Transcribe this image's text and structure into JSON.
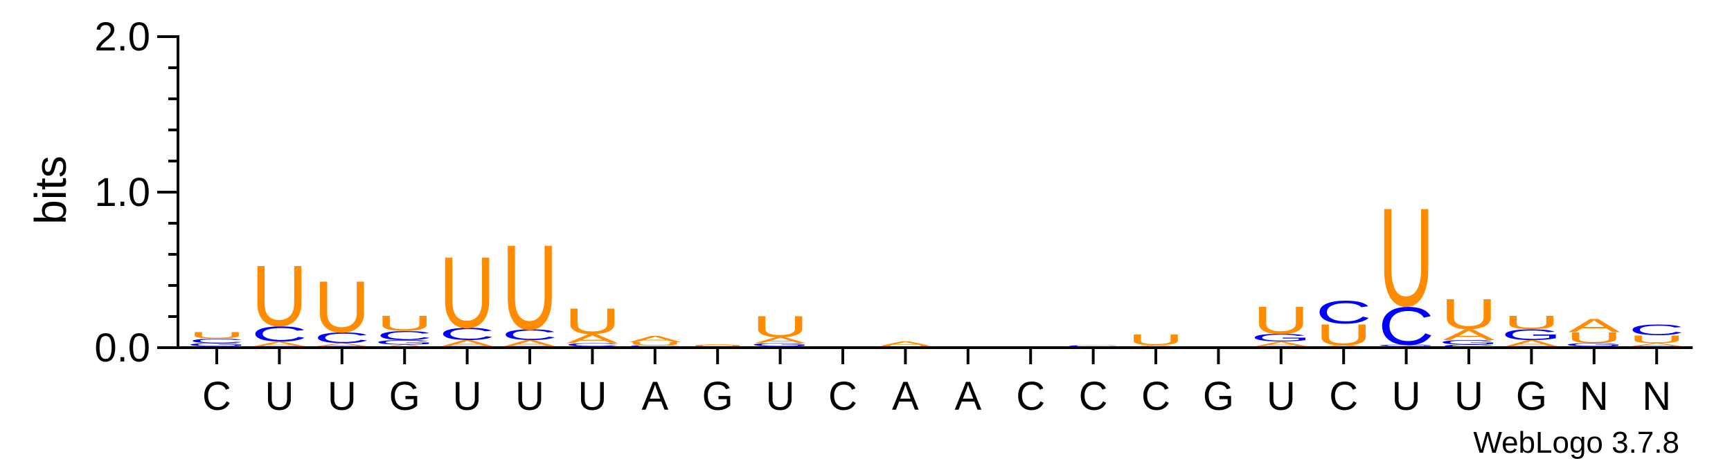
{
  "chart_data": {
    "type": "sequence-logo",
    "ylabel": "bits",
    "ylim": [
      0,
      2.0
    ],
    "yticks": [
      {
        "value": 0.0,
        "label": "0.0"
      },
      {
        "value": 1.0,
        "label": "1.0"
      },
      {
        "value": 2.0,
        "label": "2.0"
      }
    ],
    "x_labels": [
      "C",
      "U",
      "U",
      "G",
      "U",
      "U",
      "U",
      "A",
      "G",
      "U",
      "C",
      "A",
      "A",
      "C",
      "C",
      "C",
      "G",
      "U",
      "C",
      "U",
      "U",
      "G",
      "N",
      "N"
    ],
    "credit": "WebLogo 3.7.8",
    "colors": {
      "U": "#ff8c00",
      "A": "#ff8c00",
      "C": "#0000ff",
      "G": "#0000ff"
    },
    "columns": [
      {
        "label": "C",
        "stack": [
          {
            "letter": "A",
            "bits": 0.01
          },
          {
            "letter": "G",
            "bits": 0.02
          },
          {
            "letter": "C",
            "bits": 0.03
          },
          {
            "letter": "U",
            "bits": 0.04
          }
        ]
      },
      {
        "label": "U",
        "stack": [
          {
            "letter": "G",
            "bits": 0.01
          },
          {
            "letter": "A",
            "bits": 0.03
          },
          {
            "letter": "C",
            "bits": 0.1
          },
          {
            "letter": "U",
            "bits": 0.4
          }
        ]
      },
      {
        "label": "U",
        "stack": [
          {
            "letter": "G",
            "bits": 0.01
          },
          {
            "letter": "A",
            "bits": 0.02
          },
          {
            "letter": "C",
            "bits": 0.07
          },
          {
            "letter": "U",
            "bits": 0.34
          }
        ]
      },
      {
        "label": "G",
        "stack": [
          {
            "letter": "A",
            "bits": 0.02
          },
          {
            "letter": "G",
            "bits": 0.03
          },
          {
            "letter": "C",
            "bits": 0.06
          },
          {
            "letter": "U",
            "bits": 0.1
          }
        ]
      },
      {
        "label": "U",
        "stack": [
          {
            "letter": "G",
            "bits": 0.01
          },
          {
            "letter": "A",
            "bits": 0.04
          },
          {
            "letter": "C",
            "bits": 0.08
          },
          {
            "letter": "U",
            "bits": 0.47
          }
        ]
      },
      {
        "label": "U",
        "stack": [
          {
            "letter": "G",
            "bits": 0.01
          },
          {
            "letter": "A",
            "bits": 0.04
          },
          {
            "letter": "C",
            "bits": 0.07
          },
          {
            "letter": "U",
            "bits": 0.56
          }
        ]
      },
      {
        "label": "U",
        "stack": [
          {
            "letter": "G",
            "bits": 0.01
          },
          {
            "letter": "C",
            "bits": 0.02
          },
          {
            "letter": "A",
            "bits": 0.06
          },
          {
            "letter": "U",
            "bits": 0.17
          }
        ]
      },
      {
        "label": "A",
        "stack": [
          {
            "letter": "G",
            "bits": 0.005
          },
          {
            "letter": "C",
            "bits": 0.01
          },
          {
            "letter": "U",
            "bits": 0.02
          },
          {
            "letter": "A",
            "bits": 0.04
          }
        ]
      },
      {
        "label": "G",
        "stack": [
          {
            "letter": "G",
            "bits": 0.005
          },
          {
            "letter": "C",
            "bits": 0.005
          },
          {
            "letter": "U",
            "bits": 0.005
          },
          {
            "letter": "A",
            "bits": 0.005
          }
        ]
      },
      {
        "label": "U",
        "stack": [
          {
            "letter": "C",
            "bits": 0.01
          },
          {
            "letter": "G",
            "bits": 0.02
          },
          {
            "letter": "A",
            "bits": 0.04
          },
          {
            "letter": "U",
            "bits": 0.14
          }
        ]
      },
      {
        "label": "C",
        "stack": [
          {
            "letter": "C",
            "bits": 0.002
          },
          {
            "letter": "G",
            "bits": 0.002
          },
          {
            "letter": "U",
            "bits": 0.002
          },
          {
            "letter": "A",
            "bits": 0.002
          }
        ]
      },
      {
        "label": "A",
        "stack": [
          {
            "letter": "G",
            "bits": 0.003
          },
          {
            "letter": "C",
            "bits": 0.003
          },
          {
            "letter": "U",
            "bits": 0.005
          },
          {
            "letter": "A",
            "bits": 0.03
          }
        ]
      },
      {
        "label": "A",
        "stack": [
          {
            "letter": "A",
            "bits": 0.002
          },
          {
            "letter": "G",
            "bits": 0.002
          },
          {
            "letter": "C",
            "bits": 0.002
          },
          {
            "letter": "U",
            "bits": 0.002
          }
        ]
      },
      {
        "label": "C",
        "stack": [
          {
            "letter": "A",
            "bits": 0.002
          },
          {
            "letter": "G",
            "bits": 0.002
          },
          {
            "letter": "C",
            "bits": 0.002
          },
          {
            "letter": "U",
            "bits": 0.002
          }
        ]
      },
      {
        "label": "C",
        "stack": [
          {
            "letter": "A",
            "bits": 0.002
          },
          {
            "letter": "G",
            "bits": 0.002
          },
          {
            "letter": "U",
            "bits": 0.003
          },
          {
            "letter": "C",
            "bits": 0.008
          }
        ]
      },
      {
        "label": "C",
        "stack": [
          {
            "letter": "C",
            "bits": 0.005
          },
          {
            "letter": "A",
            "bits": 0.01
          },
          {
            "letter": "U",
            "bits": 0.07
          }
        ]
      },
      {
        "label": "G",
        "stack": [
          {
            "letter": "A",
            "bits": 0.002
          },
          {
            "letter": "G",
            "bits": 0.002
          },
          {
            "letter": "C",
            "bits": 0.002
          },
          {
            "letter": "U",
            "bits": 0.002
          }
        ]
      },
      {
        "label": "U",
        "stack": [
          {
            "letter": "C",
            "bits": 0.01
          },
          {
            "letter": "A",
            "bits": 0.03
          },
          {
            "letter": "G",
            "bits": 0.05
          },
          {
            "letter": "U",
            "bits": 0.18
          }
        ]
      },
      {
        "label": "C",
        "stack": [
          {
            "letter": "G",
            "bits": 0.005
          },
          {
            "letter": "A",
            "bits": 0.01
          },
          {
            "letter": "U",
            "bits": 0.14
          },
          {
            "letter": "C",
            "bits": 0.15
          }
        ]
      },
      {
        "label": "U",
        "stack": [
          {
            "letter": "A",
            "bits": 0.01
          },
          {
            "letter": "G",
            "bits": 0.01
          },
          {
            "letter": "C",
            "bits": 0.25
          },
          {
            "letter": "U",
            "bits": 0.65
          }
        ]
      },
      {
        "label": "U",
        "stack": [
          {
            "letter": "C",
            "bits": 0.02
          },
          {
            "letter": "G",
            "bits": 0.03
          },
          {
            "letter": "A",
            "bits": 0.07
          },
          {
            "letter": "U",
            "bits": 0.2
          }
        ]
      },
      {
        "label": "G",
        "stack": [
          {
            "letter": "C",
            "bits": 0.01
          },
          {
            "letter": "A",
            "bits": 0.04
          },
          {
            "letter": "G",
            "bits": 0.07
          },
          {
            "letter": "U",
            "bits": 0.09
          }
        ]
      },
      {
        "label": "N",
        "stack": [
          {
            "letter": "C",
            "bits": 0.01
          },
          {
            "letter": "G",
            "bits": 0.02
          },
          {
            "letter": "U",
            "bits": 0.07
          },
          {
            "letter": "A",
            "bits": 0.09
          }
        ]
      },
      {
        "label": "N",
        "stack": [
          {
            "letter": "G",
            "bits": 0.01
          },
          {
            "letter": "A",
            "bits": 0.02
          },
          {
            "letter": "U",
            "bits": 0.05
          },
          {
            "letter": "C",
            "bits": 0.07
          }
        ]
      }
    ]
  }
}
